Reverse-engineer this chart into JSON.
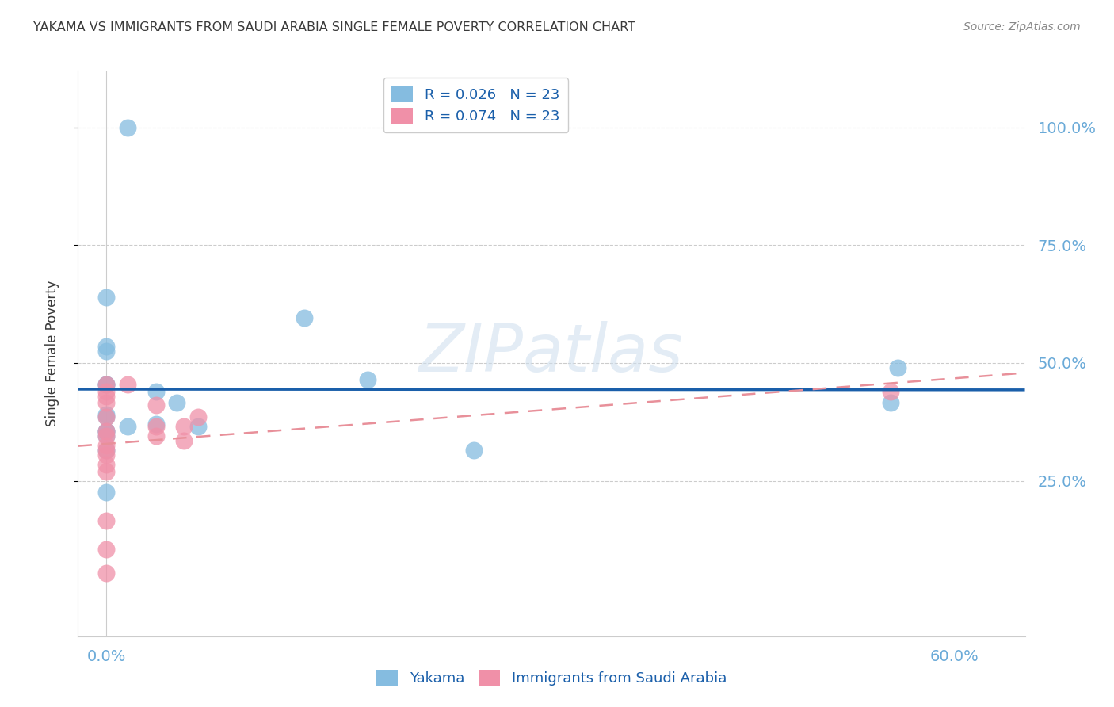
{
  "title": "YAKAMA VS IMMIGRANTS FROM SAUDI ARABIA SINGLE FEMALE POVERTY CORRELATION CHART",
  "source": "Source: ZipAtlas.com",
  "ylabel": "Single Female Poverty",
  "x_tick_labels": [
    "0.0%",
    "60.0%"
  ],
  "y_tick_labels": [
    "100.0%",
    "75.0%",
    "50.0%",
    "25.0%"
  ],
  "y_tick_positions": [
    1.0,
    0.75,
    0.5,
    0.25
  ],
  "x_tick_positions": [
    0.0,
    0.6
  ],
  "xlim": [
    -0.02,
    0.65
  ],
  "ylim": [
    -0.08,
    1.12
  ],
  "legend_labels": [
    "Yakama",
    "Immigrants from Saudi Arabia"
  ],
  "legend_r_entries": [
    "R = 0.026   N = 23",
    "R = 0.074   N = 23"
  ],
  "yakama_x": [
    0.015,
    0.0,
    0.0,
    0.0,
    0.0,
    0.035,
    0.05,
    0.035,
    0.015,
    0.065,
    0.0,
    0.0,
    0.14,
    0.185,
    0.26,
    0.0,
    0.0,
    0.0,
    0.0,
    0.56,
    0.555,
    0.0,
    0.0
  ],
  "yakama_y": [
    1.0,
    0.64,
    0.535,
    0.525,
    0.455,
    0.44,
    0.415,
    0.37,
    0.365,
    0.365,
    0.345,
    0.315,
    0.595,
    0.465,
    0.315,
    0.455,
    0.39,
    0.385,
    0.225,
    0.49,
    0.415,
    0.355,
    0.355
  ],
  "saudi_x": [
    0.0,
    0.0,
    0.0,
    0.0,
    0.0,
    0.0,
    0.0,
    0.0,
    0.0,
    0.0,
    0.0,
    0.0,
    0.0,
    0.015,
    0.035,
    0.035,
    0.035,
    0.055,
    0.055,
    0.065,
    0.555,
    0.0,
    0.0
  ],
  "saudi_y": [
    0.455,
    0.44,
    0.43,
    0.415,
    0.385,
    0.355,
    0.345,
    0.325,
    0.315,
    0.305,
    0.285,
    0.27,
    0.165,
    0.455,
    0.41,
    0.365,
    0.345,
    0.335,
    0.365,
    0.385,
    0.44,
    0.105,
    0.055
  ],
  "yakama_color": "#85bce0",
  "saudi_color": "#f090a8",
  "yakama_line_color": "#1a5faa",
  "saudi_line_color": "#e8909a",
  "watermark_text": "ZIPatlas",
  "grid_color": "#cccccc",
  "background_color": "#ffffff",
  "title_color": "#3a3a3a",
  "tick_label_color": "#6aaad8",
  "source_color": "#888888"
}
